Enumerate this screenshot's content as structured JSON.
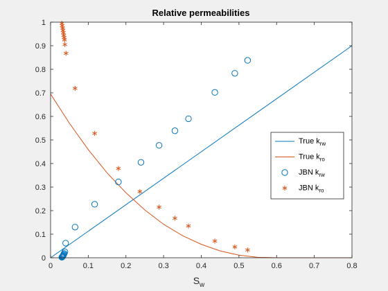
{
  "chart_data": {
    "type": "scatter",
    "title": "Relative permeabilities",
    "xlabel": "S",
    "xlabel_sub": "w",
    "ylabel": "",
    "xlim": [
      0,
      0.8
    ],
    "ylim": [
      0,
      1
    ],
    "xticks": [
      "0",
      "0.1",
      "0.2",
      "0.3",
      "0.4",
      "0.5",
      "0.6",
      "0.7",
      "0.8"
    ],
    "yticks": [
      "0",
      "0.1",
      "0.2",
      "0.3",
      "0.4",
      "0.5",
      "0.6",
      "0.7",
      "0.8",
      "0.9",
      "1"
    ],
    "grid": false,
    "legend_position": "right",
    "colors": {
      "krw": "#0072bd",
      "kro": "#d95319",
      "background": "#f0f0f0",
      "axes_bg": "#ffffff"
    },
    "series": [
      {
        "name": "True k",
        "sub": "rw",
        "kind": "line",
        "x": [
          0,
          0.8
        ],
        "y": [
          0,
          0.9
        ]
      },
      {
        "name": "True k",
        "sub": "ro",
        "kind": "line",
        "x": [
          0,
          0.05,
          0.1,
          0.15,
          0.2,
          0.25,
          0.3,
          0.35,
          0.4,
          0.45,
          0.5,
          0.55,
          0.6,
          0.65,
          0.7,
          0.75,
          0.8
        ],
        "y": [
          0.695,
          0.571,
          0.459,
          0.36,
          0.276,
          0.203,
          0.142,
          0.094,
          0.057,
          0.029,
          0.011,
          0.002,
          0.0,
          0.0,
          0.0,
          0.0,
          0.0
        ]
      },
      {
        "name": "JBN k",
        "sub": "rw",
        "kind": "circle",
        "x": [
          0.03,
          0.031,
          0.032,
          0.033,
          0.034,
          0.035,
          0.036,
          0.038,
          0.04,
          0.065,
          0.117,
          0.18,
          0.24,
          0.288,
          0.33,
          0.366,
          0.436,
          0.489,
          0.523
        ],
        "y": [
          0.002,
          0.004,
          0.006,
          0.008,
          0.011,
          0.014,
          0.018,
          0.025,
          0.062,
          0.13,
          0.227,
          0.322,
          0.405,
          0.477,
          0.539,
          0.59,
          0.702,
          0.783,
          0.838
        ]
      },
      {
        "name": "JBN k",
        "sub": "ro",
        "kind": "star",
        "x": [
          0.03,
          0.031,
          0.032,
          0.033,
          0.034,
          0.035,
          0.036,
          0.037,
          0.038,
          0.041,
          0.065,
          0.117,
          0.18,
          0.237,
          0.288,
          0.33,
          0.366,
          0.436,
          0.489,
          0.523
        ],
        "y": [
          0.995,
          0.985,
          0.975,
          0.965,
          0.955,
          0.945,
          0.935,
          0.925,
          0.905,
          0.868,
          0.719,
          0.528,
          0.379,
          0.281,
          0.215,
          0.168,
          0.135,
          0.071,
          0.046,
          0.033
        ]
      }
    ]
  }
}
